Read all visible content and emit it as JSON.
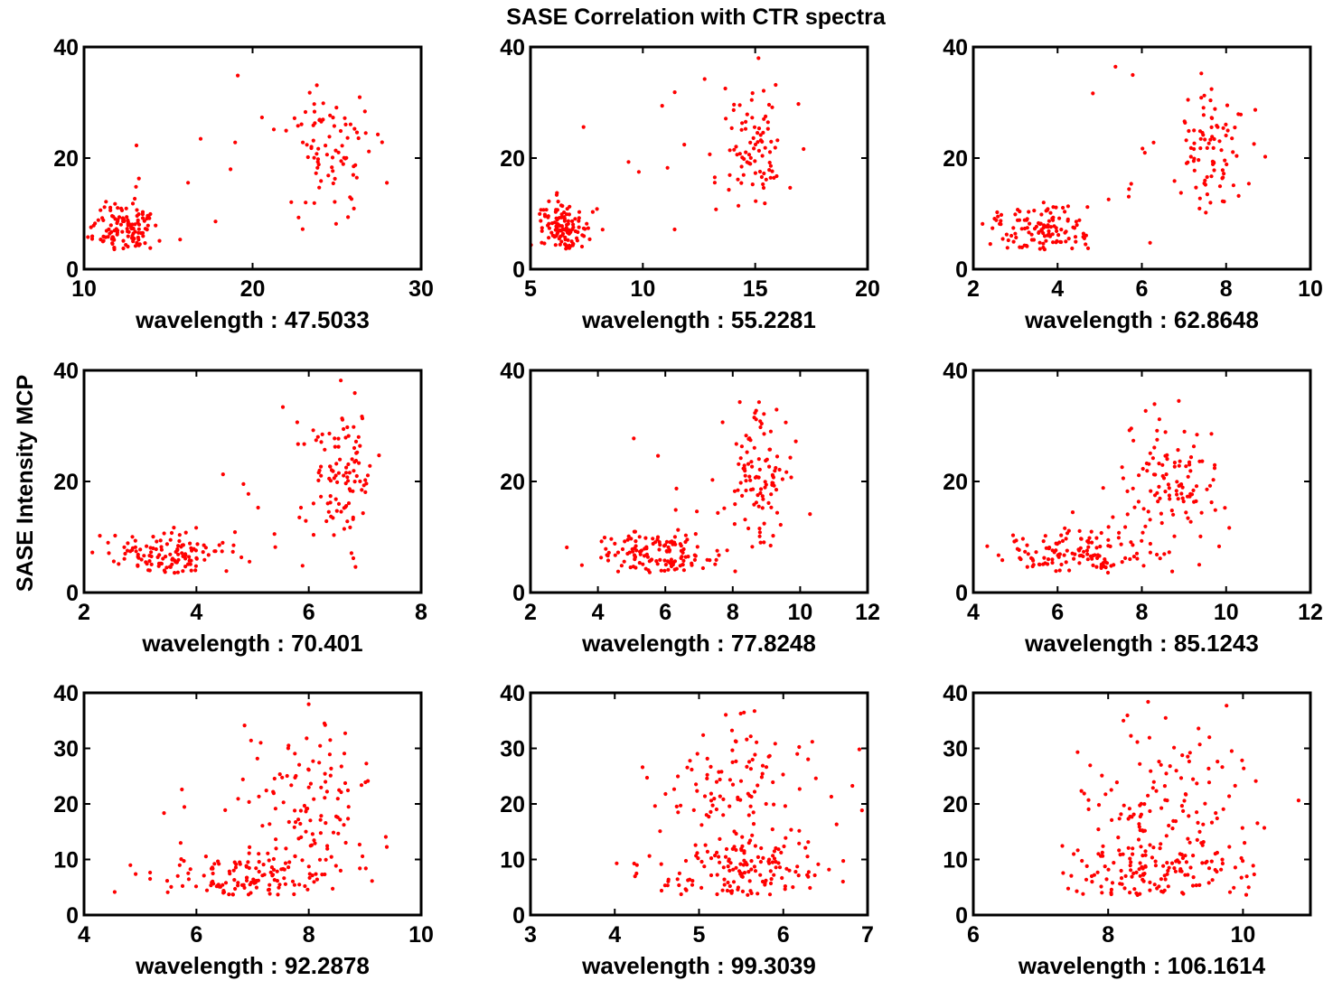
{
  "figure": {
    "title": "SASE Correlation with CTR spectra",
    "ylabel": "SASE Intensity MCP",
    "marker_color": "#ff0000",
    "axes_color": "#000000"
  },
  "chart_data": [
    {
      "type": "scatter",
      "xlabel": "wavelength : 47.5033",
      "xlim": [
        10,
        30
      ],
      "ylim": [
        0,
        40
      ],
      "xticks": [
        10,
        20,
        30
      ],
      "yticks": [
        0,
        20,
        40
      ],
      "seed": 11,
      "clusters": [
        {
          "n": 120,
          "cx": 12.5,
          "sx": 0.9,
          "cy": 7.5,
          "sy": 2.4
        },
        {
          "n": 85,
          "cx": 24.5,
          "sx": 1.4,
          "cy": 22,
          "sy": 6
        },
        {
          "n": 12,
          "cx": 17,
          "sx": 3,
          "cy": 20,
          "sy": 10
        }
      ]
    },
    {
      "type": "scatter",
      "xlabel": "wavelength : 55.2281",
      "xlim": [
        5,
        20
      ],
      "ylim": [
        0,
        40
      ],
      "xticks": [
        5,
        10,
        15,
        20
      ],
      "yticks": [
        0,
        20,
        40
      ],
      "seed": 12,
      "clusters": [
        {
          "n": 120,
          "cx": 6.5,
          "sx": 0.6,
          "cy": 7.5,
          "sy": 2.4
        },
        {
          "n": 85,
          "cx": 15,
          "sx": 0.7,
          "cy": 22,
          "sy": 6
        },
        {
          "n": 12,
          "cx": 10.5,
          "sx": 2,
          "cy": 20,
          "sy": 10
        }
      ]
    },
    {
      "type": "scatter",
      "xlabel": "wavelength : 62.8648",
      "xlim": [
        2,
        10
      ],
      "ylim": [
        0,
        40
      ],
      "xticks": [
        2,
        4,
        6,
        8,
        10
      ],
      "yticks": [
        0,
        20,
        40
      ],
      "seed": 13,
      "clusters": [
        {
          "n": 120,
          "cx": 3.6,
          "sx": 0.6,
          "cy": 7,
          "sy": 2.4
        },
        {
          "n": 85,
          "cx": 7.6,
          "sx": 0.4,
          "cy": 22,
          "sy": 6
        },
        {
          "n": 12,
          "cx": 5.8,
          "sx": 1,
          "cy": 20,
          "sy": 10
        }
      ]
    },
    {
      "type": "scatter",
      "xlabel": "wavelength : 70.401",
      "xlim": [
        2,
        8
      ],
      "ylim": [
        0,
        40
      ],
      "xticks": [
        2,
        4,
        6,
        8
      ],
      "yticks": [
        0,
        20,
        40
      ],
      "seed": 14,
      "clusters": [
        {
          "n": 130,
          "cx": 3.6,
          "sx": 0.55,
          "cy": 7,
          "sy": 2.2
        },
        {
          "n": 100,
          "cx": 6.6,
          "sx": 0.3,
          "cy": 22,
          "sy": 6
        },
        {
          "n": 15,
          "cx": 5.4,
          "sx": 0.6,
          "cy": 20,
          "sy": 10
        }
      ]
    },
    {
      "type": "scatter",
      "xlabel": "wavelength : 77.8248",
      "xlim": [
        2,
        12
      ],
      "ylim": [
        0,
        40
      ],
      "xticks": [
        2,
        4,
        6,
        8,
        10,
        12
      ],
      "yticks": [
        0,
        20,
        40
      ],
      "seed": 15,
      "clusters": [
        {
          "n": 130,
          "cx": 5.6,
          "sx": 0.8,
          "cy": 7,
          "sy": 2.2
        },
        {
          "n": 100,
          "cx": 8.8,
          "sx": 0.5,
          "cy": 22,
          "sy": 6
        },
        {
          "n": 15,
          "cx": 7.5,
          "sx": 1,
          "cy": 18,
          "sy": 10
        }
      ]
    },
    {
      "type": "scatter",
      "xlabel": "wavelength : 85.1243",
      "xlim": [
        4,
        12
      ],
      "ylim": [
        0,
        40
      ],
      "xticks": [
        4,
        6,
        8,
        10,
        12
      ],
      "yticks": [
        0,
        20,
        40
      ],
      "seed": 16,
      "clusters": [
        {
          "n": 130,
          "cx": 6.6,
          "sx": 0.9,
          "cy": 7,
          "sy": 2.3
        },
        {
          "n": 100,
          "cx": 8.7,
          "sx": 0.6,
          "cy": 21,
          "sy": 6.5
        },
        {
          "n": 15,
          "cx": 7.6,
          "sx": 1,
          "cy": 15,
          "sy": 9
        }
      ]
    },
    {
      "type": "scatter",
      "xlabel": "wavelength : 92.2878",
      "xlim": [
        4,
        10
      ],
      "ylim": [
        0,
        40
      ],
      "xticks": [
        4,
        6,
        8,
        10
      ],
      "yticks": [
        0,
        10,
        20,
        30,
        40
      ],
      "seed": 17,
      "clusters": [
        {
          "n": 130,
          "cx": 6.9,
          "sx": 0.75,
          "cy": 7,
          "sy": 2.3
        },
        {
          "n": 100,
          "cx": 8.1,
          "sx": 0.6,
          "cy": 21,
          "sy": 7
        },
        {
          "n": 15,
          "cx": 7,
          "sx": 1,
          "cy": 15,
          "sy": 10
        }
      ]
    },
    {
      "type": "scatter",
      "xlabel": "wavelength : 99.3039",
      "xlim": [
        3,
        7
      ],
      "ylim": [
        0,
        40
      ],
      "xticks": [
        3,
        4,
        5,
        6,
        7
      ],
      "yticks": [
        0,
        10,
        20,
        30,
        40
      ],
      "seed": 18,
      "clusters": [
        {
          "n": 140,
          "cx": 5.4,
          "sx": 0.5,
          "cy": 8,
          "sy": 3
        },
        {
          "n": 100,
          "cx": 5.5,
          "sx": 0.45,
          "cy": 22,
          "sy": 7
        },
        {
          "n": 15,
          "cx": 5.2,
          "sx": 0.9,
          "cy": 25,
          "sy": 10
        }
      ]
    },
    {
      "type": "scatter",
      "xlabel": "wavelength : 106.1614",
      "xlim": [
        6,
        11
      ],
      "ylim": [
        0,
        40
      ],
      "xticks": [
        6,
        8,
        10
      ],
      "yticks": [
        0,
        10,
        20,
        30,
        40
      ],
      "seed": 19,
      "clusters": [
        {
          "n": 140,
          "cx": 8.8,
          "sx": 0.7,
          "cy": 8,
          "sy": 3
        },
        {
          "n": 100,
          "cx": 8.8,
          "sx": 0.6,
          "cy": 22,
          "sy": 7
        },
        {
          "n": 15,
          "cx": 8.6,
          "sx": 1.2,
          "cy": 25,
          "sy": 10
        }
      ]
    }
  ]
}
